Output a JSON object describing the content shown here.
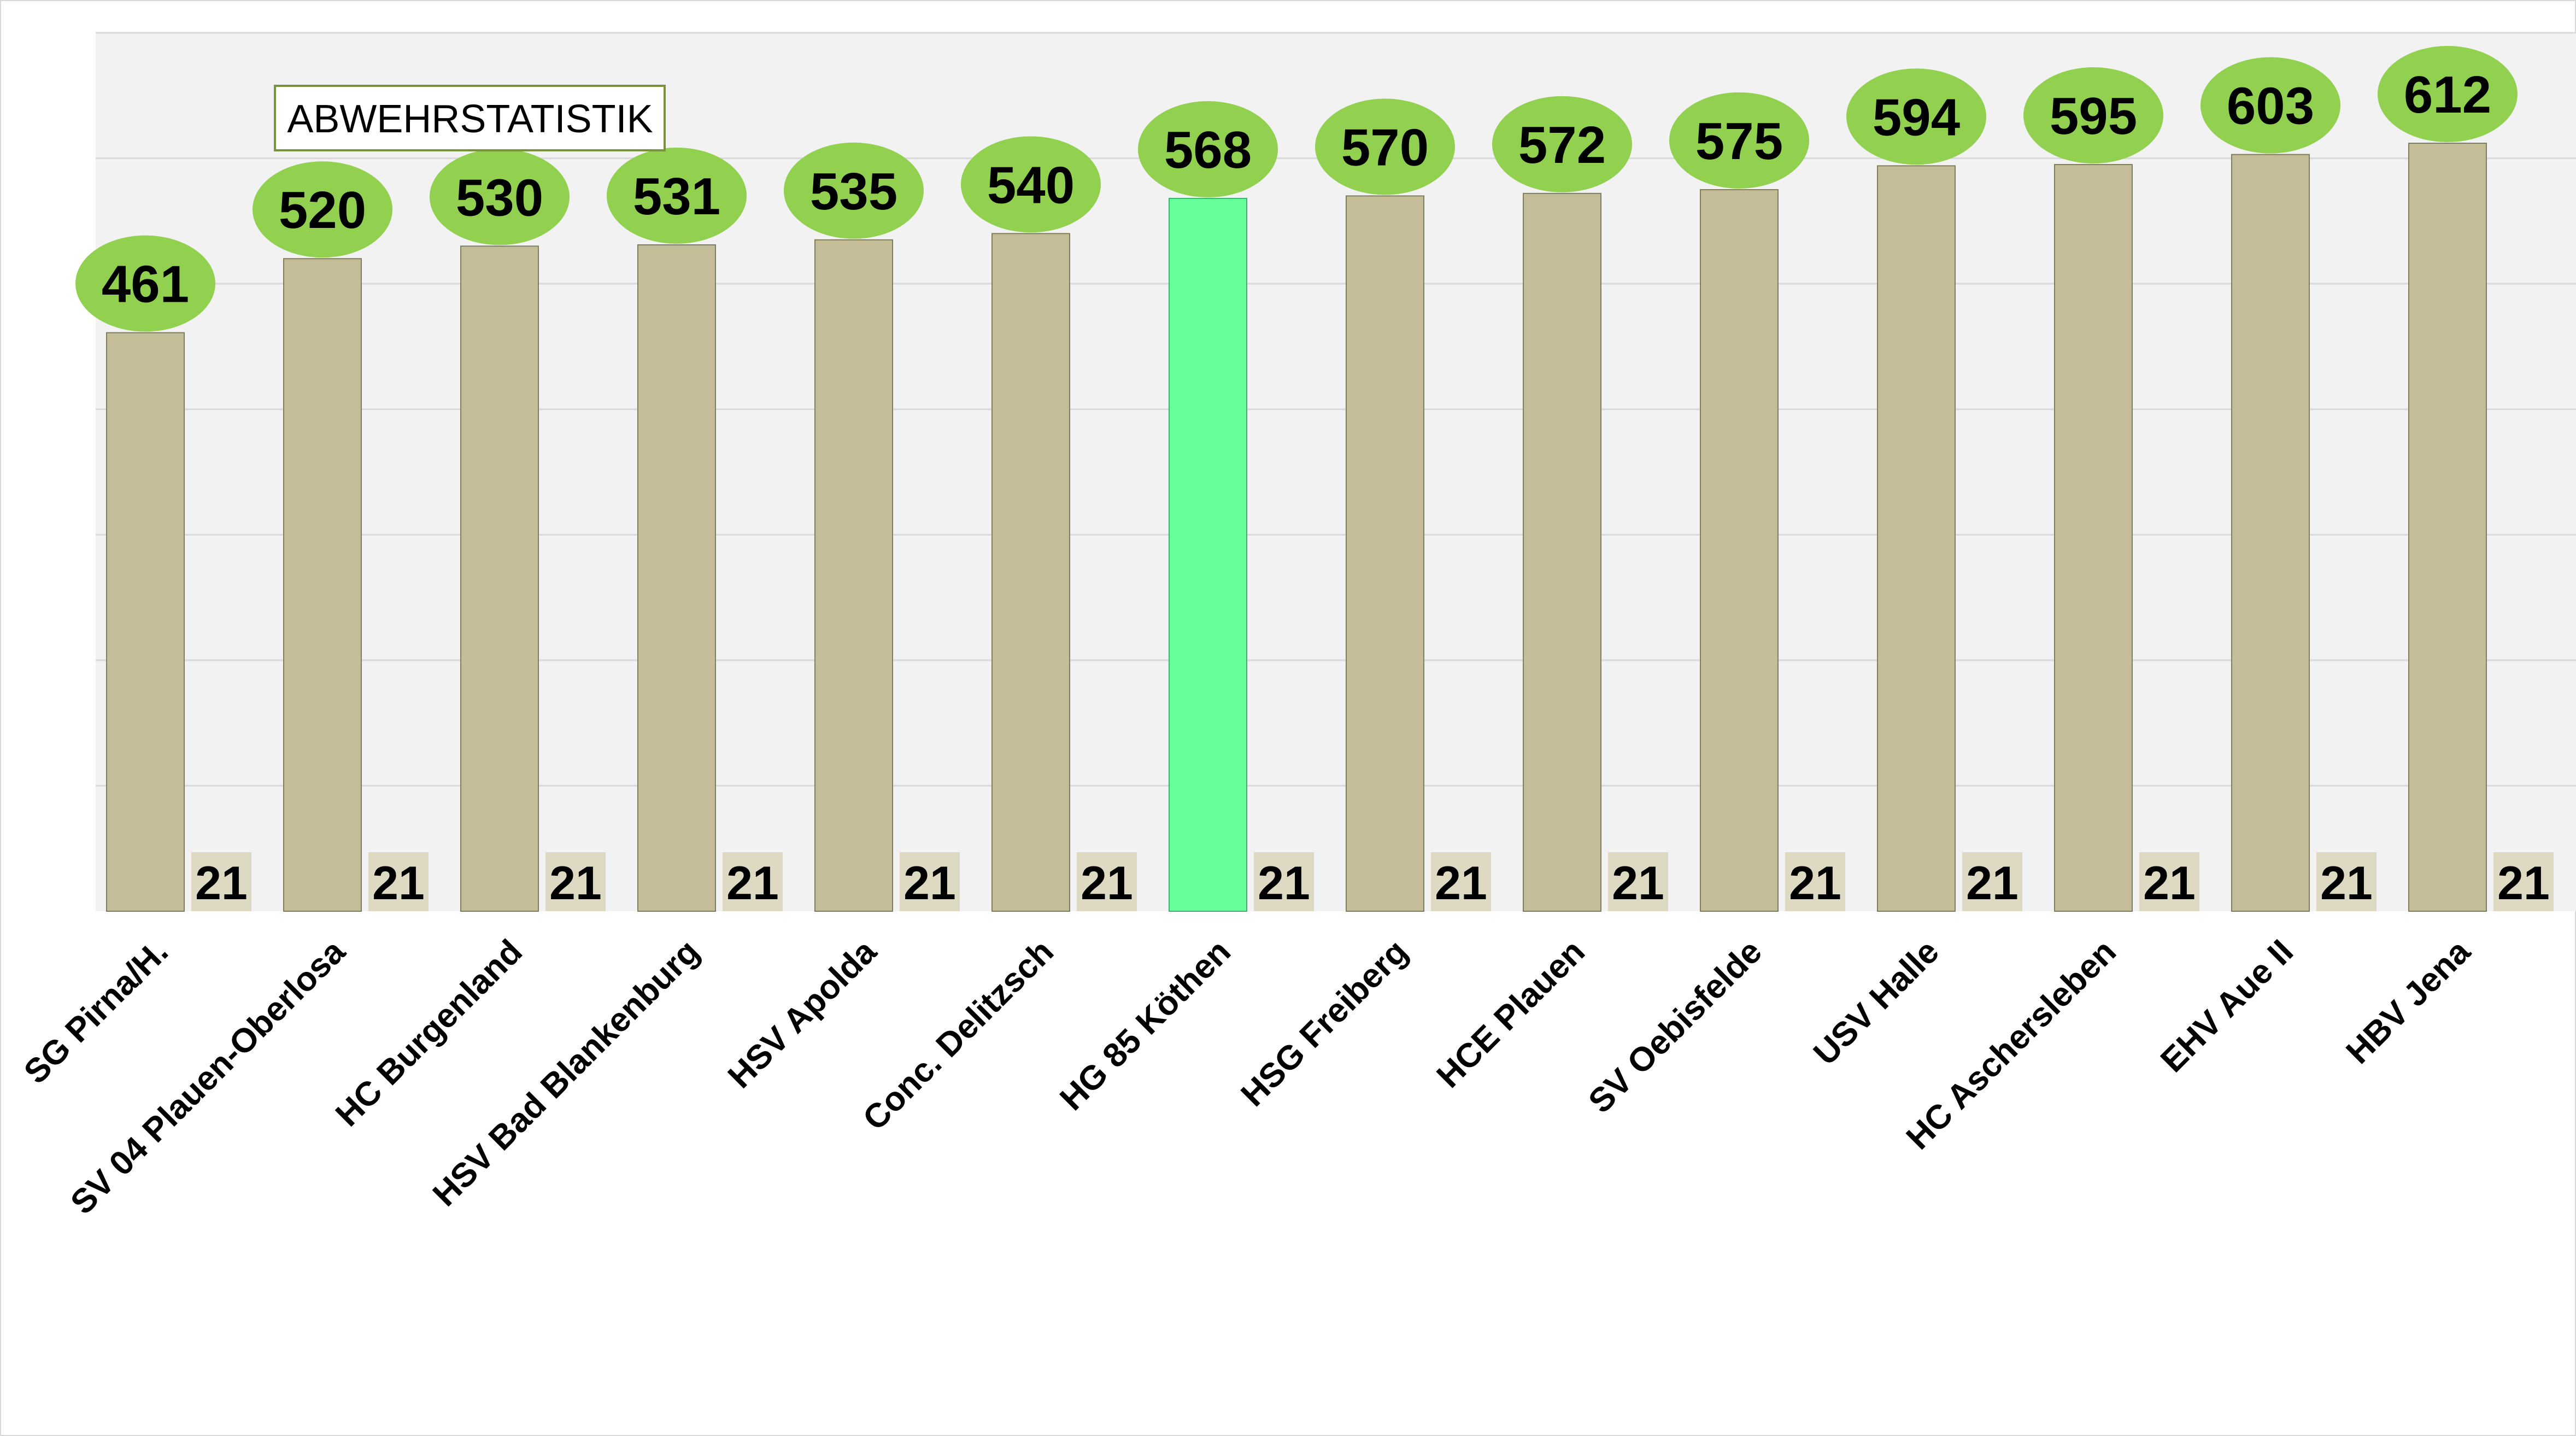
{
  "chart_data": {
    "type": "bar",
    "title": "ABWEHRSTATISTIK",
    "xlabel": "",
    "ylabel": "",
    "ylim": [
      0,
      700
    ],
    "grid": true,
    "categories": [
      "SG Pirna/H.",
      "SV 04 Plauen-Oberlosa",
      "HC Burgenland",
      "HSV Bad Blankenburg",
      "HSV Apolda",
      "Conc. Delitzsch",
      "HG 85 Köthen",
      "HSG Freiberg",
      "HCE Plauen",
      "SV Oebisfelde",
      "USV Halle",
      "HC Aschersleben",
      "EHV Aue II",
      "HBV Jena"
    ],
    "series": [
      {
        "values": [
          461,
          520,
          530,
          531,
          535,
          540,
          568,
          570,
          572,
          575,
          594,
          595,
          603,
          612
        ]
      },
      {
        "values": [
          21,
          21,
          21,
          21,
          21,
          21,
          21,
          21,
          21,
          21,
          21,
          21,
          21,
          21
        ]
      }
    ],
    "highlight_category": "HG 85 Köthen",
    "colors": {
      "bar": "#c4bd97",
      "bar_highlight": "#66ff99",
      "value_bubble": "#92d050",
      "games_box": "#ddd9c3",
      "grid": "#d9d9d9",
      "plot_background": "#f2f2f2",
      "title_border": "#77933c"
    }
  }
}
